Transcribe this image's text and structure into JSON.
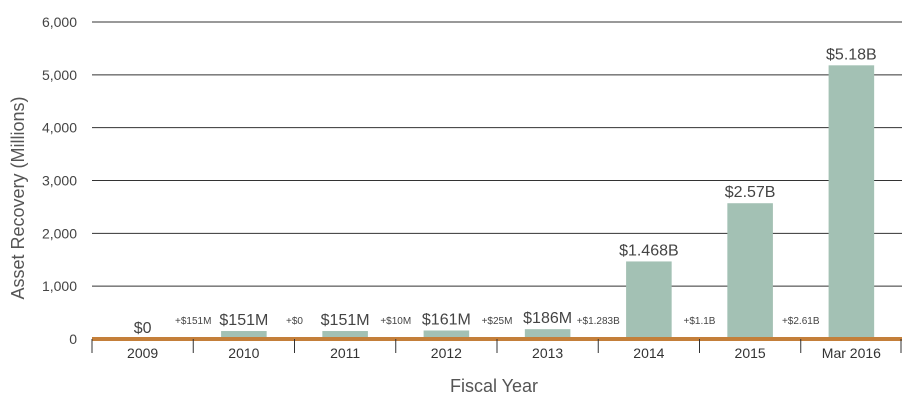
{
  "chart_data": {
    "type": "bar",
    "title": "",
    "xlabel": "Fiscal Year",
    "ylabel": "Asset Recovery (Millions)",
    "ylim": [
      0,
      6000
    ],
    "yticks": [
      0,
      1000,
      2000,
      3000,
      4000,
      5000,
      6000
    ],
    "ytick_labels": [
      "0",
      "1,000",
      "2,000",
      "3,000",
      "4,000",
      "5,000",
      "6,000"
    ],
    "grid": true,
    "categories": [
      "2009",
      "2010",
      "2011",
      "2012",
      "2013",
      "2014",
      "2015",
      "Mar 2016"
    ],
    "values": [
      0,
      151,
      151,
      161,
      186,
      1468,
      2570,
      5180
    ],
    "value_labels": [
      "$0",
      "$151M",
      "$151M",
      "$161M",
      "$186M",
      "$1.468B",
      "$2.57B",
      "$5.18B"
    ],
    "increment_labels": [
      "+$151M",
      "+$0",
      "+$10M",
      "+$25M",
      "+$1.283B",
      "+$1.1B",
      "+$2.61B"
    ],
    "colors": {
      "bar": "#a3c1b4",
      "baseline": "#c47f3a",
      "grid": "#333333"
    }
  }
}
